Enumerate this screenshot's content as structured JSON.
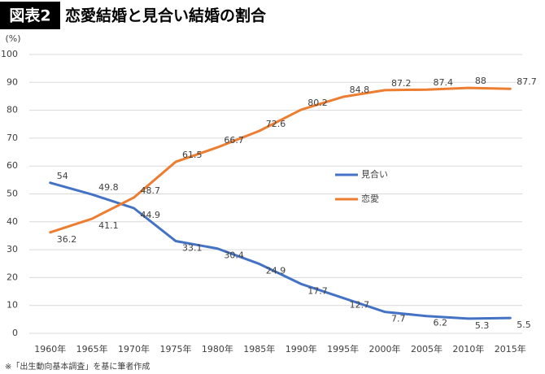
{
  "chart_data": {
    "type": "line",
    "badge": "図表2",
    "title": "恋愛結婚と見合い結婚の割合",
    "ylabel": "(%)",
    "note": "※「出生動向基本調査」を基に筆者作成",
    "categories": [
      "1960年",
      "1965年",
      "1970年",
      "1975年",
      "1980年",
      "1985年",
      "1990年",
      "1995年",
      "2000年",
      "2005年",
      "2010年",
      "2015年"
    ],
    "series": [
      {
        "name": "見合い",
        "color": "#4472c4",
        "values": [
          54,
          49.8,
          44.9,
          33.1,
          30.4,
          24.9,
          17.7,
          12.7,
          7.7,
          6.2,
          5.3,
          5.5
        ]
      },
      {
        "name": "恋愛",
        "color": "#ed7d31",
        "values": [
          36.2,
          41.1,
          48.7,
          61.5,
          66.7,
          72.6,
          80.2,
          84.8,
          87.2,
          87.4,
          88,
          87.7
        ]
      }
    ],
    "ylim": [
      0,
      100
    ],
    "yticks": [
      0,
      10,
      20,
      30,
      40,
      50,
      60,
      70,
      80,
      90,
      100
    ],
    "grid": true,
    "data_labels": true
  }
}
